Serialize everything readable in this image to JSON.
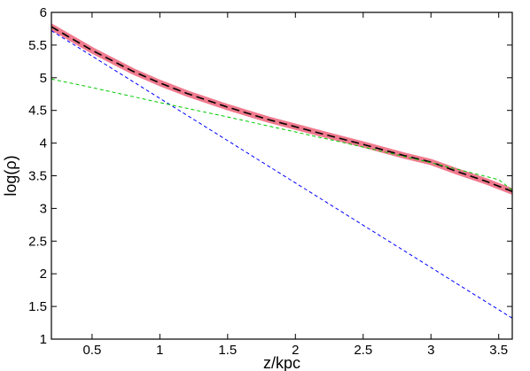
{
  "chart_data": {
    "type": "line",
    "xlabel": "z/kpc",
    "ylabel": "log(ρ)",
    "xlim": [
      0.2,
      3.6
    ],
    "ylim": [
      1,
      6
    ],
    "grid": false,
    "x_ticks": [
      {
        "value": 0.5,
        "label": "0.5"
      },
      {
        "value": 1,
        "label": "1"
      },
      {
        "value": 1.5,
        "label": "1.5"
      },
      {
        "value": 2,
        "label": "2"
      },
      {
        "value": 2.5,
        "label": "2.5"
      },
      {
        "value": 3,
        "label": "3"
      },
      {
        "value": 3.5,
        "label": "3.5"
      }
    ],
    "y_ticks": [
      {
        "value": 1,
        "label": "1"
      },
      {
        "value": 1.5,
        "label": "1.5"
      },
      {
        "value": 2,
        "label": "2"
      },
      {
        "value": 2.5,
        "label": "2.5"
      },
      {
        "value": 3,
        "label": "3"
      },
      {
        "value": 3.5,
        "label": "3.5"
      },
      {
        "value": 4,
        "label": "4"
      },
      {
        "value": 4.5,
        "label": "4.5"
      },
      {
        "value": 5,
        "label": "5"
      },
      {
        "value": 5.5,
        "label": "5.5"
      },
      {
        "value": 6,
        "label": "6"
      }
    ],
    "series": [
      {
        "color": "#f07a8e",
        "style": "solid-thick",
        "x": [
          0.2,
          0.5,
          0.8,
          1.0,
          1.2,
          1.5,
          1.8,
          2.0,
          2.2,
          2.5,
          2.8,
          3.0,
          3.2,
          3.4,
          3.6
        ],
        "y": [
          5.78,
          5.42,
          5.1,
          4.92,
          4.76,
          4.55,
          4.36,
          4.25,
          4.14,
          3.98,
          3.81,
          3.71,
          3.56,
          3.42,
          3.26
        ]
      },
      {
        "color": "#000000",
        "style": "dashed",
        "x": [
          0.2,
          0.5,
          0.8,
          1.0,
          1.2,
          1.5,
          1.8,
          2.0,
          2.2,
          2.5,
          2.8,
          3.0,
          3.2,
          3.4,
          3.6
        ],
        "y": [
          5.78,
          5.42,
          5.1,
          4.92,
          4.76,
          4.55,
          4.36,
          4.25,
          4.14,
          3.98,
          3.81,
          3.71,
          3.56,
          3.42,
          3.26
        ]
      },
      {
        "color": "#0000ff",
        "style": "dashed",
        "x": [
          0.2,
          3.6
        ],
        "y": [
          5.72,
          1.32
        ]
      },
      {
        "color": "#00cc00",
        "style": "dashed",
        "x": [
          0.2,
          0.5,
          1.0,
          1.5,
          2.0,
          2.5,
          3.0,
          3.5,
          3.6
        ],
        "y": [
          4.98,
          4.85,
          4.62,
          4.4,
          4.17,
          3.94,
          3.7,
          3.44,
          3.28
        ]
      }
    ]
  }
}
